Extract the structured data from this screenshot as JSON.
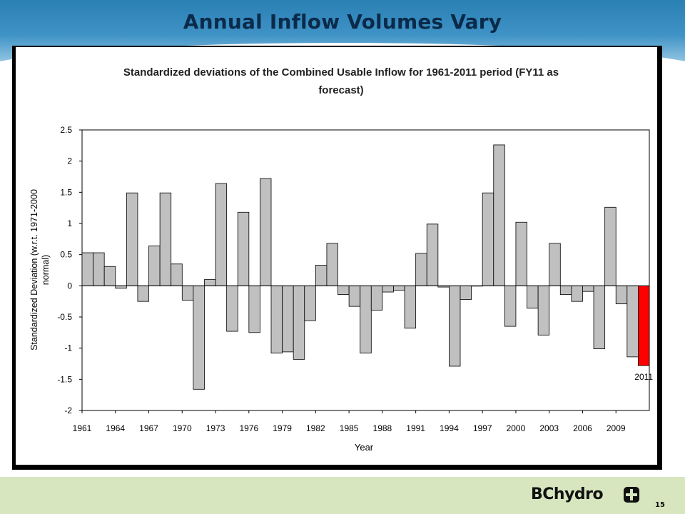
{
  "slide": {
    "title": "Annual Inflow Volumes Vary",
    "logo_text": "BChydro",
    "page_number": "15"
  },
  "colors": {
    "bar_fill": "#c0c0c0",
    "highlight_fill": "#ff0000",
    "footer_bg": "#d7e6bf",
    "title_color": "#0b2a4a"
  },
  "chart_data": {
    "type": "bar",
    "title_line1": "Standardized deviations of the Combined Usable Inflow for 1961-2011 period (FY11 as",
    "title_line2": "forecast)",
    "xlabel": "Year",
    "ylabel_line1": "Standardized Deviation (w.r.t. 1971-2000",
    "ylabel_line2": "normal)",
    "ylim": [
      -2,
      2.5
    ],
    "yticks": [
      "2.5",
      "2",
      "1.5",
      "1",
      "0.5",
      "0",
      "-0.5",
      "-1",
      "-1.5",
      "-2"
    ],
    "x_tick_labels": [
      "1961",
      "1964",
      "1967",
      "1970",
      "1973",
      "1976",
      "1979",
      "1982",
      "1985",
      "1988",
      "1991",
      "1994",
      "1997",
      "2000",
      "2003",
      "2006",
      "2009"
    ],
    "highlight_label": "2011",
    "grid": false,
    "legend": "none",
    "categories": [
      "1961",
      "1962",
      "1963",
      "1964",
      "1965",
      "1966",
      "1967",
      "1968",
      "1969",
      "1970",
      "1971",
      "1972",
      "1973",
      "1974",
      "1975",
      "1976",
      "1977",
      "1978",
      "1979",
      "1980",
      "1981",
      "1982",
      "1983",
      "1984",
      "1985",
      "1986",
      "1987",
      "1988",
      "1989",
      "1990",
      "1991",
      "1992",
      "1993",
      "1994",
      "1995",
      "1996",
      "1997",
      "1998",
      "1999",
      "2000",
      "2001",
      "2002",
      "2003",
      "2004",
      "2005",
      "2006",
      "2007",
      "2008",
      "2009",
      "2010",
      "2011"
    ],
    "values": [
      0.53,
      0.53,
      0.31,
      -0.04,
      1.49,
      -0.25,
      0.64,
      1.49,
      0.35,
      -0.23,
      -1.66,
      0.1,
      1.64,
      -0.73,
      1.18,
      -0.75,
      1.72,
      -1.08,
      -1.06,
      -1.18,
      -0.56,
      0.33,
      0.68,
      -0.14,
      -0.33,
      -1.08,
      -0.39,
      -0.1,
      -0.07,
      -0.68,
      0.52,
      0.99,
      -0.02,
      -1.29,
      -0.22,
      0.0,
      1.49,
      2.26,
      -0.65,
      1.02,
      -0.36,
      -0.79,
      0.68,
      -0.14,
      -0.25,
      -0.09,
      -1.01,
      1.26,
      -0.29,
      -1.14,
      -1.28
    ]
  }
}
